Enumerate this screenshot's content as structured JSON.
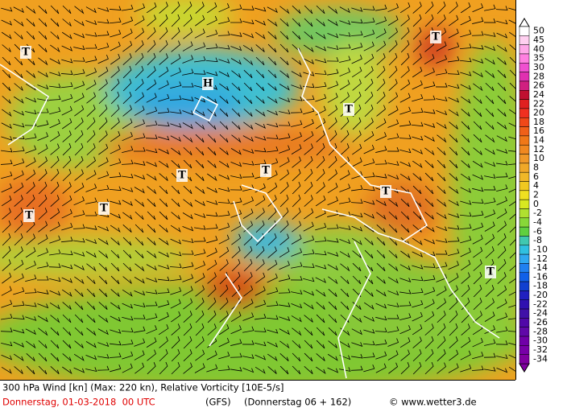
{
  "map": {
    "pressure_labels": [
      "T",
      "H",
      "T",
      "T",
      "T",
      "T",
      "T",
      "T",
      "T",
      "T"
    ]
  },
  "legend": {
    "labels": [
      50,
      45,
      40,
      35,
      30,
      28,
      26,
      24,
      22,
      20,
      18,
      16,
      14,
      12,
      10,
      8,
      6,
      4,
      2,
      0,
      -2,
      -4,
      -6,
      -8,
      -10,
      -12,
      -14,
      -16,
      -18,
      -20,
      -22,
      -24,
      -26,
      -28,
      -30,
      -32,
      -34
    ]
  },
  "footer": {
    "description": "300 hPa Wind [kn] (Max: 220 kn), Relative Vorticity [10E-5/s]",
    "date": "Donnerstag, 01-03-2018  00 UTC",
    "model": "(GFS)",
    "run": "(Donnerstag 06 + 162)",
    "credit": "© www.wetter3.de"
  }
}
